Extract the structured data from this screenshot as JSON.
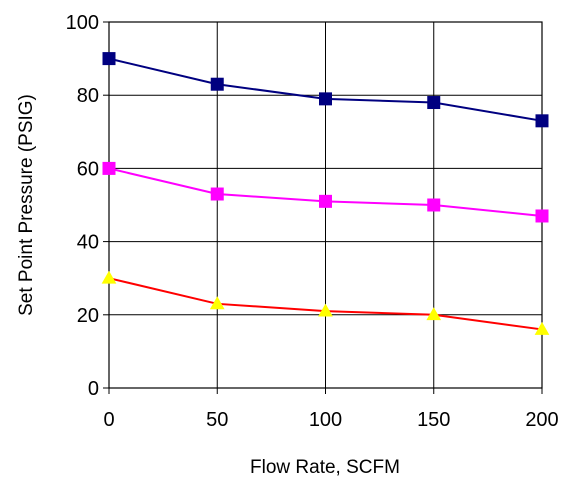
{
  "chart_data": {
    "type": "line",
    "xlabel": "Flow Rate, SCFM",
    "ylabel": "Set Point Pressure (PSIG)",
    "x": [
      0,
      50,
      100,
      150,
      200
    ],
    "xlim": [
      0,
      200
    ],
    "ylim": [
      0,
      100
    ],
    "xticks": [
      0,
      50,
      100,
      150,
      200
    ],
    "yticks": [
      0,
      20,
      40,
      60,
      80,
      100
    ],
    "grid": true,
    "series": [
      {
        "values": [
          90,
          83,
          79,
          78,
          73
        ],
        "line_color": "#000080",
        "marker": "square",
        "marker_color": "#000080"
      },
      {
        "values": [
          60,
          53,
          51,
          50,
          47
        ],
        "line_color": "#FF00FF",
        "marker": "square",
        "marker_color": "#FF00FF"
      },
      {
        "values": [
          30,
          23,
          21,
          20,
          16
        ],
        "line_color": "#FF0000",
        "marker": "triangle",
        "marker_color": "#FFFF00"
      }
    ]
  }
}
